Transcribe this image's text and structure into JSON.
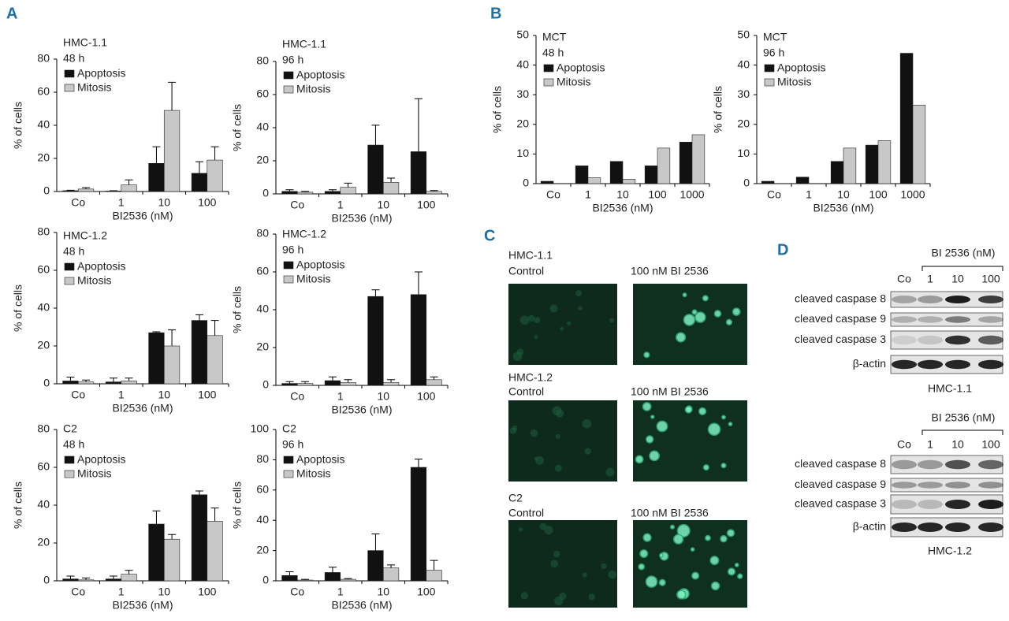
{
  "panel_labels": [
    "A",
    "B",
    "C",
    "D"
  ],
  "chart_data": [
    {
      "type": "bar",
      "title": "HMC-1.1",
      "subtitle": "48 h",
      "y_label": "% of cells",
      "x_label": "BI2536 (nM)",
      "categories": [
        "Co",
        "1",
        "10",
        "100"
      ],
      "series": [
        {
          "name": "Apoptosis",
          "color": "#111111",
          "values": [
            0.5,
            0.3,
            17,
            11
          ],
          "errors": [
            0.3,
            0.2,
            10,
            7
          ]
        },
        {
          "name": "Mitosis",
          "color": "#c8c8c8",
          "values": [
            1.5,
            4,
            49,
            19
          ],
          "errors": [
            0.8,
            3,
            17,
            8
          ]
        }
      ],
      "ylim": [
        0,
        80
      ],
      "yticks": [
        0,
        20,
        40,
        60,
        80
      ]
    },
    {
      "type": "bar",
      "title": "HMC-1.1",
      "subtitle": "96 h",
      "y_label": "% of cells",
      "x_label": "BI2536 (nM)",
      "categories": [
        "Co",
        "1",
        "10",
        "100"
      ],
      "series": [
        {
          "name": "Apoptosis",
          "color": "#111111",
          "values": [
            1.5,
            1.5,
            29.5,
            25.5
          ],
          "errors": [
            1,
            1,
            12,
            32
          ]
        },
        {
          "name": "Mitosis",
          "color": "#c8c8c8",
          "values": [
            1,
            4,
            7,
            1.5
          ],
          "errors": [
            0.5,
            2.5,
            2.5,
            0.5
          ]
        }
      ],
      "ylim": [
        0,
        80
      ],
      "yticks": [
        0,
        20,
        40,
        60,
        80
      ]
    },
    {
      "type": "bar",
      "title": "HMC-1.2",
      "subtitle": "48 h",
      "y_label": "% of cells",
      "x_label": "BI2536 (nM)",
      "categories": [
        "Co",
        "1",
        "10",
        "100"
      ],
      "series": [
        {
          "name": "Apoptosis",
          "color": "#111111",
          "values": [
            1.5,
            1,
            27,
            33.5
          ],
          "errors": [
            2,
            2,
            0.5,
            3
          ]
        },
        {
          "name": "Mitosis",
          "color": "#c8c8c8",
          "values": [
            1,
            1.5,
            20,
            25.5
          ],
          "errors": [
            1,
            1.5,
            8.5,
            8
          ]
        }
      ],
      "ylim": [
        0,
        80
      ],
      "yticks": [
        0,
        20,
        40,
        60,
        80
      ]
    },
    {
      "type": "bar",
      "title": "HMC-1.2",
      "subtitle": "96 h",
      "y_label": "% of cells",
      "x_label": "BI2536 (nM)",
      "categories": [
        "Co",
        "1",
        "10",
        "100"
      ],
      "series": [
        {
          "name": "Apoptosis",
          "color": "#111111",
          "values": [
            1,
            2.5,
            47,
            48
          ],
          "errors": [
            1,
            2,
            3.5,
            12
          ]
        },
        {
          "name": "Mitosis",
          "color": "#c8c8c8",
          "values": [
            1,
            1.5,
            1.5,
            3
          ],
          "errors": [
            1,
            1.5,
            1.5,
            1.5
          ]
        }
      ],
      "ylim": [
        0,
        80
      ],
      "yticks": [
        0,
        20,
        40,
        60,
        80
      ]
    },
    {
      "type": "bar",
      "title": "C2",
      "subtitle": "48 h",
      "y_label": "% of cells",
      "x_label": "BI2536 (nM)",
      "categories": [
        "Co",
        "1",
        "10",
        "100"
      ],
      "series": [
        {
          "name": "Apoptosis",
          "color": "#111111",
          "values": [
            1,
            1,
            30,
            45.5
          ],
          "errors": [
            1.5,
            1.5,
            7,
            2
          ]
        },
        {
          "name": "Mitosis",
          "color": "#c8c8c8",
          "values": [
            0.5,
            3.5,
            22,
            31.5
          ],
          "errors": [
            1,
            2,
            2.5,
            7
          ]
        }
      ],
      "ylim": [
        0,
        80
      ],
      "yticks": [
        0,
        20,
        40,
        60,
        80
      ]
    },
    {
      "type": "bar",
      "title": "C2",
      "subtitle": "96 h",
      "y_label": "% of cells",
      "x_label": "BI2536 (nM)",
      "categories": [
        "Co",
        "1",
        "10",
        "100"
      ],
      "series": [
        {
          "name": "Apoptosis",
          "color": "#111111",
          "values": [
            3.5,
            5.5,
            20,
            75
          ],
          "errors": [
            2.5,
            3.5,
            11,
            5.5
          ]
        },
        {
          "name": "Mitosis",
          "color": "#c8c8c8",
          "values": [
            0.5,
            1,
            8.5,
            7
          ],
          "errors": [
            0.5,
            0.5,
            2,
            6.5
          ]
        }
      ],
      "ylim": [
        0,
        100
      ],
      "yticks": [
        0,
        20,
        40,
        60,
        80,
        100
      ]
    },
    {
      "type": "bar",
      "title": "MCT",
      "subtitle": "48 h",
      "y_label": "% of cells",
      "x_label": "BI2536 (nM)",
      "categories": [
        "Co",
        "1",
        "10",
        "100",
        "1000"
      ],
      "series": [
        {
          "name": "Apoptosis",
          "color": "#111111",
          "values": [
            0.8,
            6,
            7.5,
            6,
            14
          ]
        },
        {
          "name": "Mitosis",
          "color": "#c8c8c8",
          "values": [
            0,
            2,
            1.5,
            12,
            16.5
          ]
        }
      ],
      "ylim": [
        0,
        50
      ],
      "yticks": [
        0,
        10,
        20,
        30,
        40,
        50
      ]
    },
    {
      "type": "bar",
      "title": "MCT",
      "subtitle": "96 h",
      "y_label": "% of cells",
      "x_label": "BI2536 (nM)",
      "categories": [
        "Co",
        "1",
        "10",
        "100",
        "1000"
      ],
      "series": [
        {
          "name": "Apoptosis",
          "color": "#111111",
          "values": [
            0.8,
            2.2,
            7.5,
            13,
            44
          ]
        },
        {
          "name": "Mitosis",
          "color": "#c8c8c8",
          "values": [
            0,
            0,
            12,
            14.5,
            26.5
          ]
        }
      ],
      "ylim": [
        0,
        50
      ],
      "yticks": [
        0,
        10,
        20,
        30,
        40,
        50
      ]
    }
  ],
  "micrographs": {
    "rows": [
      {
        "cell_line": "HMC-1.1",
        "control": "Control",
        "treated": "100 nM BI 2536"
      },
      {
        "cell_line": "HMC-1.2",
        "control": "Control",
        "treated": "100 nM BI 2536"
      },
      {
        "cell_line": "C2",
        "control": "Control",
        "treated": "100 nM BI 2536"
      }
    ]
  },
  "blots": [
    {
      "header": "BI 2536 (nM)",
      "lanes": [
        "Co",
        "1",
        "10",
        "100"
      ],
      "rows": [
        "cleaved caspase 8",
        "cleaved caspase 9",
        "cleaved caspase 3",
        "β-actin"
      ],
      "caption": "HMC-1.1"
    },
    {
      "header": "BI 2536 (nM)",
      "lanes": [
        "Co",
        "1",
        "10",
        "100"
      ],
      "rows": [
        "cleaved caspase 8",
        "cleaved caspase 9",
        "cleaved caspase 3",
        "β-actin"
      ],
      "caption": "HMC-1.2"
    }
  ]
}
